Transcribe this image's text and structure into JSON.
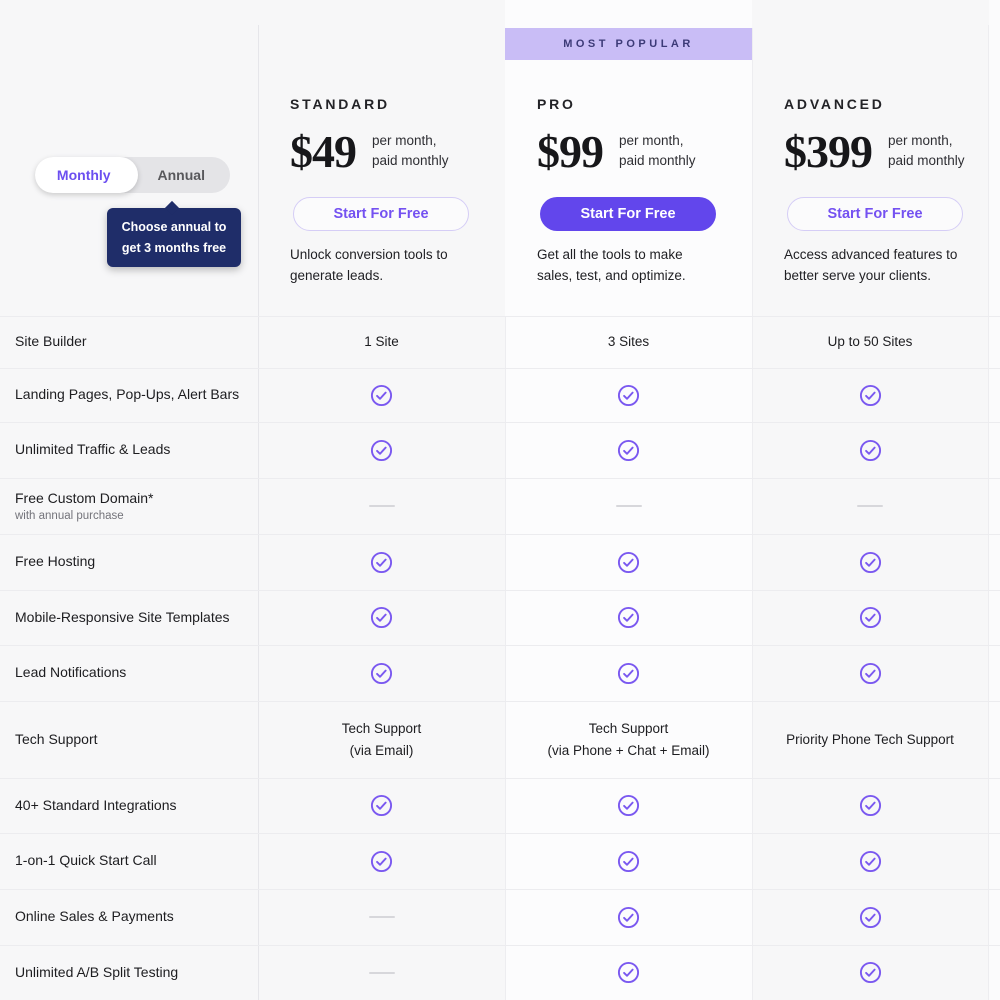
{
  "colors": {
    "page_bg": "#f7f7f8",
    "accent_purple": "#6246ec",
    "link_purple": "#7451f1",
    "check_purple": "#7a58f0",
    "badge_bg": "#c9bdf6",
    "badge_text": "#3c3a77",
    "tooltip_bg": "#1f2d69",
    "divider": "#e6e6ea"
  },
  "toggle": {
    "monthly_label": "Monthly",
    "annual_label": "Annual",
    "selected": "Monthly"
  },
  "tooltip": {
    "lines": [
      "Choose annual to",
      "get 3 months free"
    ]
  },
  "plans": [
    {
      "id": "standard",
      "name": "STANDARD",
      "price": "$49",
      "price_note_lines": [
        "per month,",
        "paid monthly"
      ],
      "button_label": "Start For Free",
      "button_style": "outline",
      "badge": null,
      "description_lines": [
        "Unlock conversion tools to",
        "generate leads."
      ]
    },
    {
      "id": "pro",
      "name": "PRO",
      "price": "$99",
      "price_note_lines": [
        "per month,",
        "paid monthly"
      ],
      "button_label": "Start For Free",
      "button_style": "solid",
      "badge": "MOST POPULAR",
      "description_lines": [
        "Get all the tools to make",
        "sales, test, and optimize."
      ]
    },
    {
      "id": "advanced",
      "name": "ADVANCED",
      "price": "$399",
      "price_note_lines": [
        "per month,",
        "paid monthly"
      ],
      "button_label": "Start For Free",
      "button_style": "outline",
      "badge": null,
      "description_lines": [
        "Access advanced features to",
        "better serve your clients."
      ]
    }
  ],
  "table": {
    "rows": [
      {
        "label": "Site Builder",
        "sublabel": null,
        "values": [
          {
            "type": "text",
            "lines": [
              "1 Site"
            ]
          },
          {
            "type": "text",
            "lines": [
              "3 Sites"
            ]
          },
          {
            "type": "text",
            "lines": [
              "Up to 50 Sites"
            ]
          }
        ]
      },
      {
        "label": "Landing Pages, Pop-Ups, Alert Bars",
        "sublabel": null,
        "values": [
          {
            "type": "check"
          },
          {
            "type": "check"
          },
          {
            "type": "check"
          }
        ]
      },
      {
        "label": "Unlimited Traffic & Leads",
        "sublabel": null,
        "values": [
          {
            "type": "check"
          },
          {
            "type": "check"
          },
          {
            "type": "check"
          }
        ]
      },
      {
        "label": "Free Custom Domain*",
        "sublabel": "with annual purchase",
        "values": [
          {
            "type": "dash"
          },
          {
            "type": "dash"
          },
          {
            "type": "dash"
          }
        ]
      },
      {
        "label": "Free Hosting",
        "sublabel": null,
        "values": [
          {
            "type": "check"
          },
          {
            "type": "check"
          },
          {
            "type": "check"
          }
        ]
      },
      {
        "label": "Mobile-Responsive Site Templates",
        "sublabel": null,
        "values": [
          {
            "type": "check"
          },
          {
            "type": "check"
          },
          {
            "type": "check"
          }
        ]
      },
      {
        "label": "Lead Notifications",
        "sublabel": null,
        "values": [
          {
            "type": "check"
          },
          {
            "type": "check"
          },
          {
            "type": "check"
          }
        ]
      },
      {
        "label": "Tech Support",
        "sublabel": null,
        "values": [
          {
            "type": "text",
            "lines": [
              "Tech Support",
              "(via Email)"
            ]
          },
          {
            "type": "text",
            "lines": [
              "Tech Support",
              "(via Phone + Chat + Email)"
            ]
          },
          {
            "type": "text",
            "lines": [
              "Priority Phone Tech Support"
            ]
          }
        ]
      },
      {
        "label": "40+ Standard Integrations",
        "sublabel": null,
        "values": [
          {
            "type": "check"
          },
          {
            "type": "check"
          },
          {
            "type": "check"
          }
        ]
      },
      {
        "label": "1-on-1 Quick Start Call",
        "sublabel": null,
        "values": [
          {
            "type": "check"
          },
          {
            "type": "check"
          },
          {
            "type": "check"
          }
        ]
      },
      {
        "label": "Online Sales & Payments",
        "sublabel": null,
        "values": [
          {
            "type": "dash"
          },
          {
            "type": "check"
          },
          {
            "type": "check"
          }
        ]
      },
      {
        "label": "Unlimited A/B Split Testing",
        "sublabel": null,
        "values": [
          {
            "type": "dash"
          },
          {
            "type": "check"
          },
          {
            "type": "check"
          }
        ]
      }
    ]
  }
}
